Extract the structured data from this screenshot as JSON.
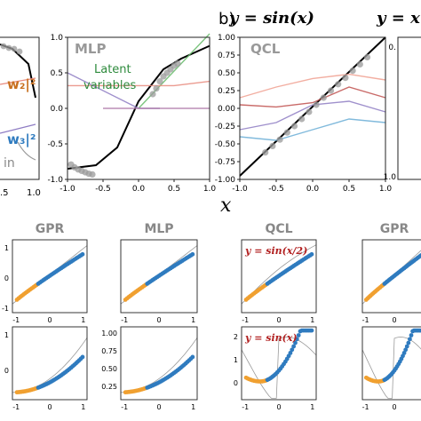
{
  "header": {
    "eq_left": "y = sin(x)",
    "panel_b_letter": "b)",
    "eq_right": "y = x",
    "x_symbol": "x"
  },
  "panel_left_partial": {
    "legend_w2": "w₂|²",
    "legend_w3": "w₃|²",
    "legend_train": "in",
    "xticks": [
      ".5",
      "1.0"
    ],
    "xticks_rightpanel": "1.0"
  },
  "chart_data": [
    {
      "type": "line",
      "title": "MLP",
      "annotation": "Latent variables",
      "xlim": [
        -1.0,
        1.0
      ],
      "ylim": [
        -1.0,
        1.0
      ],
      "xticks": [
        "-1.0",
        "-0.5",
        "0.0",
        "0.5",
        "1.0"
      ],
      "yticks": [
        "-1.0",
        "-0.5",
        "0.0",
        "0.5",
        "1.0"
      ],
      "series": [
        {
          "role": "fit",
          "color": "#000000",
          "x": [
            -1.0,
            -0.6,
            -0.3,
            0.0,
            0.35,
            0.6,
            1.0
          ],
          "y": [
            -0.85,
            -0.8,
            -0.55,
            0.1,
            0.55,
            0.7,
            0.88
          ]
        },
        {
          "role": "train",
          "color": "#999999",
          "x": [
            -0.95,
            -0.9,
            -0.85,
            -0.8,
            -0.75,
            -0.7,
            -0.65,
            0.2,
            0.25,
            0.3,
            0.35,
            0.4,
            0.45,
            0.5,
            0.55
          ],
          "y": [
            -0.79,
            -0.83,
            -0.86,
            -0.88,
            -0.9,
            -0.92,
            -0.93,
            0.2,
            0.28,
            0.38,
            0.45,
            0.5,
            0.55,
            0.6,
            0.63
          ]
        },
        {
          "role": "latent",
          "color": "#66bb6a",
          "x": [
            0.0,
            1.0
          ],
          "y": [
            0.0,
            1.3
          ]
        },
        {
          "role": "latent",
          "color": "#e8897c",
          "x": [
            -1.0,
            0.5,
            1.0
          ],
          "y": [
            0.32,
            0.32,
            0.38
          ]
        },
        {
          "role": "latent",
          "color": "#8e7cc3",
          "x": [
            -1.0,
            0.0,
            0.3
          ],
          "y": [
            0.5,
            0.0,
            0.0
          ]
        },
        {
          "role": "latent",
          "color": "#b07ba8",
          "x": [
            -0.5,
            0.0,
            1.0
          ],
          "y": [
            0.0,
            0.0,
            0.0
          ]
        }
      ]
    },
    {
      "type": "line",
      "title": "QCL",
      "xlim": [
        -1.0,
        1.0
      ],
      "ylim": [
        -1.0,
        1.0
      ],
      "xticks": [
        "-1.0",
        "-0.5",
        "0.0",
        "0.5",
        "1.0"
      ],
      "yticks": [
        "-1.00",
        "-0.75",
        "-0.50",
        "-0.25",
        "0.00",
        "0.25",
        "0.50",
        "0.75",
        "1.00"
      ],
      "series": [
        {
          "role": "fit",
          "color": "#000000",
          "x": [
            -1.0,
            1.0
          ],
          "y": [
            -0.95,
            1.0
          ]
        },
        {
          "role": "train",
          "color": "#999999",
          "x": [
            -0.65,
            -0.55,
            -0.45,
            -0.35,
            -0.25,
            -0.15,
            -0.05,
            0.05,
            0.15,
            0.25,
            0.35,
            0.45,
            0.55,
            0.65,
            0.75
          ],
          "y": [
            -0.62,
            -0.53,
            -0.44,
            -0.34,
            -0.25,
            -0.15,
            -0.05,
            0.05,
            0.15,
            0.25,
            0.34,
            0.43,
            0.53,
            0.62,
            0.72
          ]
        },
        {
          "role": "latent",
          "color": "#f0a090",
          "x": [
            -1.0,
            -0.5,
            0.0,
            0.5,
            1.0
          ],
          "y": [
            0.15,
            0.3,
            0.42,
            0.48,
            0.4
          ]
        },
        {
          "role": "latent",
          "color": "#c0504d",
          "x": [
            -1.0,
            -0.5,
            0.0,
            0.5,
            1.0
          ],
          "y": [
            0.05,
            0.02,
            0.08,
            0.3,
            0.15
          ]
        },
        {
          "role": "latent",
          "color": "#8e7cc3",
          "x": [
            -1.0,
            -0.5,
            0.0,
            0.5,
            1.0
          ],
          "y": [
            -0.3,
            -0.2,
            0.05,
            0.1,
            -0.05
          ]
        },
        {
          "role": "latent",
          "color": "#6baed6",
          "x": [
            -1.0,
            -0.5,
            0.0,
            0.5,
            1.0
          ],
          "y": [
            -0.4,
            -0.45,
            -0.3,
            -0.15,
            -0.2
          ]
        }
      ]
    },
    {
      "type": "scatter",
      "grid_titles": [
        "GPR",
        "MLP",
        "QCL",
        "GPR"
      ],
      "row_labels": [
        "y = sin(x/2)",
        "y = sin(x)"
      ],
      "xticks": [
        "-1",
        "0",
        "1"
      ],
      "row1_yticks_left": [
        "1",
        "0",
        "-1"
      ],
      "row2_yticks_left": [
        "1",
        "0"
      ],
      "mlp_row2_yticks": [
        "1.00",
        "0.75",
        "0.50",
        "0.25"
      ],
      "qcl_row2_yticks": [
        "2",
        "1",
        "0"
      ],
      "colors": {
        "train": "#2f7bbf",
        "test": "#f0a030",
        "truth": "#9a9a9a"
      }
    }
  ]
}
